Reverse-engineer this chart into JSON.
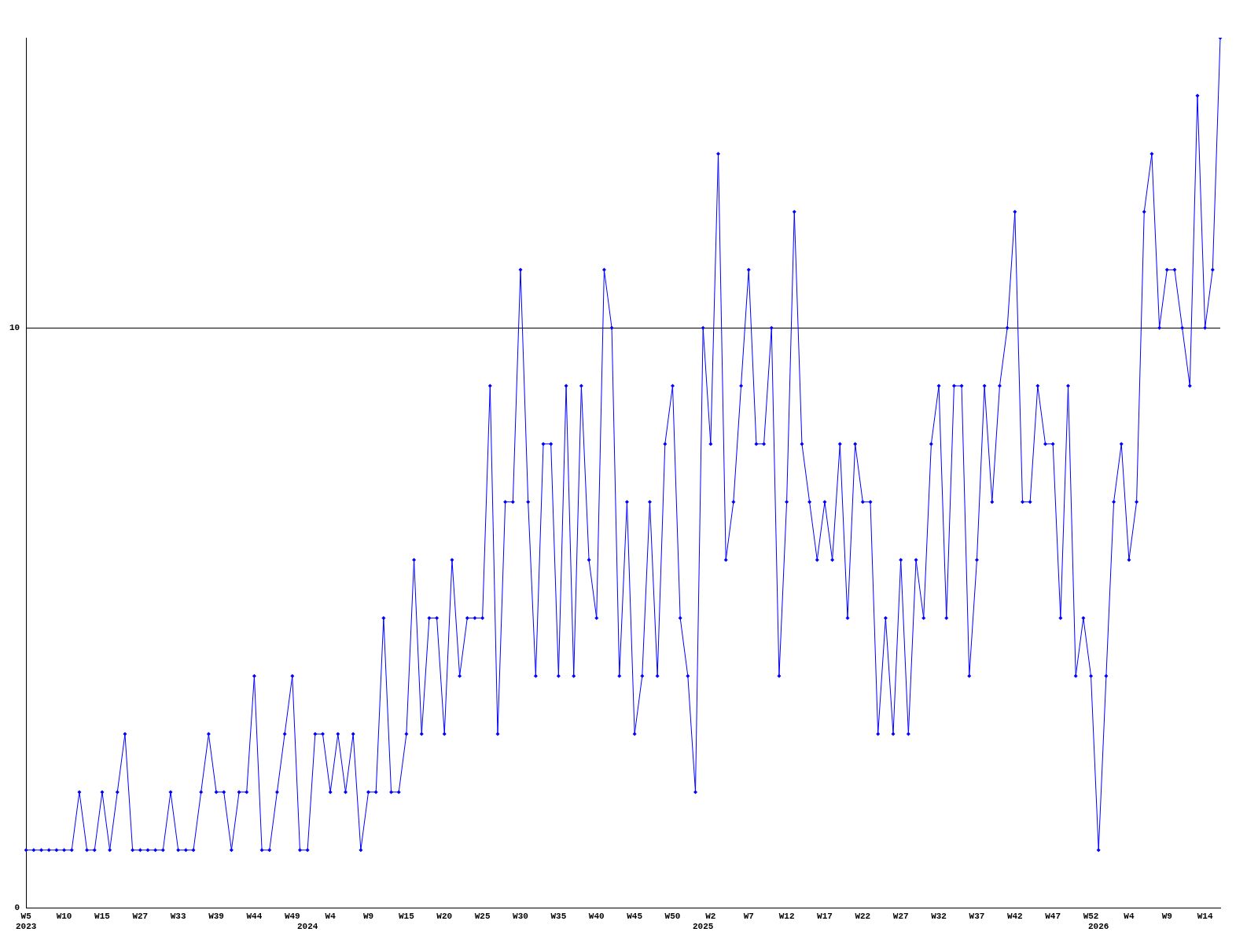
{
  "chart_data": {
    "type": "line",
    "categories": [
      "W5\n2023",
      null,
      null,
      null,
      null,
      "W10",
      null,
      null,
      null,
      null,
      "W15",
      null,
      null,
      null,
      null,
      "W27",
      null,
      null,
      null,
      null,
      "W33",
      null,
      null,
      null,
      null,
      "W39",
      null,
      null,
      null,
      null,
      "W44",
      null,
      null,
      null,
      null,
      "W49",
      null,
      "\n2024",
      null,
      null,
      "W4",
      null,
      null,
      null,
      null,
      "W9",
      null,
      null,
      null,
      null,
      "W15",
      null,
      null,
      null,
      null,
      "W20",
      null,
      null,
      null,
      null,
      "W25",
      null,
      null,
      null,
      null,
      "W30",
      null,
      null,
      null,
      null,
      "W35",
      null,
      null,
      null,
      null,
      "W40",
      null,
      null,
      null,
      null,
      "W45",
      null,
      null,
      null,
      null,
      "W50",
      null,
      null,
      null,
      "\n2025",
      "W2",
      null,
      null,
      null,
      null,
      "W7",
      null,
      null,
      null,
      null,
      "W12",
      null,
      null,
      null,
      null,
      "W17",
      null,
      null,
      null,
      null,
      "W22",
      null,
      null,
      null,
      null,
      "W27",
      null,
      null,
      null,
      null,
      "W32",
      null,
      null,
      null,
      null,
      "W37",
      null,
      null,
      null,
      null,
      "W42",
      null,
      null,
      null,
      null,
      "W47",
      null,
      null,
      null,
      null,
      "W52",
      "\n2026",
      null,
      null,
      null,
      "W4",
      null,
      null,
      null,
      null,
      "W9",
      null,
      null,
      null,
      null,
      "W14",
      null,
      null
    ],
    "series": [
      {
        "color": "#0000ff",
        "values": [
          1,
          1,
          1,
          1,
          1,
          1,
          1,
          2,
          1,
          1,
          2,
          1,
          2,
          3,
          1,
          1,
          1,
          1,
          1,
          2,
          1,
          1,
          1,
          2,
          3,
          2,
          2,
          1,
          2,
          2,
          4,
          1,
          1,
          2,
          3,
          4,
          1,
          1,
          3,
          3,
          2,
          3,
          2,
          3,
          1,
          2,
          2,
          5,
          2,
          2,
          3,
          6,
          3,
          5,
          5,
          3,
          6,
          4,
          5,
          5,
          5,
          9,
          3,
          7,
          7,
          11,
          7,
          4,
          8,
          8,
          4,
          9,
          4,
          9,
          6,
          5,
          11,
          10,
          4,
          7,
          3,
          4,
          7,
          4,
          8,
          9,
          5,
          4,
          2,
          10,
          8,
          13,
          6,
          7,
          9,
          11,
          8,
          8,
          10,
          4,
          7,
          12,
          8,
          7,
          6,
          7,
          6,
          8,
          5,
          8,
          7,
          7,
          3,
          5,
          3,
          6,
          3,
          6,
          5,
          8,
          9,
          5,
          9,
          9,
          4,
          6,
          9,
          7,
          9,
          10,
          12,
          7,
          7,
          9,
          8,
          8,
          5,
          9,
          4,
          5,
          4,
          1,
          4,
          7,
          8,
          6,
          7,
          12,
          13,
          10,
          11,
          11,
          10,
          9,
          14,
          10,
          11,
          15
        ]
      }
    ],
    "ylim": [
      0,
      15
    ],
    "yticks": [
      0,
      10
    ],
    "grid": "y",
    "marker": "diamond",
    "line_style": "solid",
    "legend": false
  }
}
